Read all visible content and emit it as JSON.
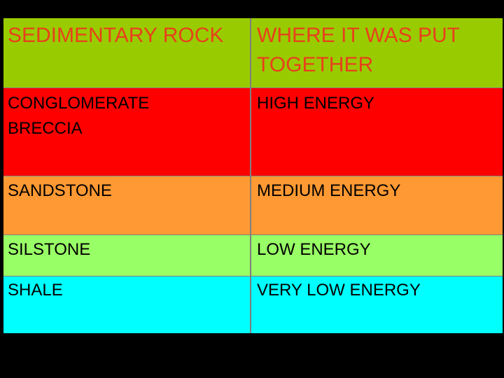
{
  "table": {
    "header": [
      "SEDIMENTARY ROCK",
      "WHERE IT WAS PUT TOGETHER"
    ],
    "rows": [
      [
        "CONGLOMERATE\nBRECCIA",
        "HIGH ENERGY"
      ],
      [
        "SANDSTONE",
        "MEDIUM ENERGY"
      ],
      [
        "SILSTONE",
        "LOW ENERGY"
      ],
      [
        "SHALE",
        "VERY LOW ENERGY"
      ]
    ]
  }
}
